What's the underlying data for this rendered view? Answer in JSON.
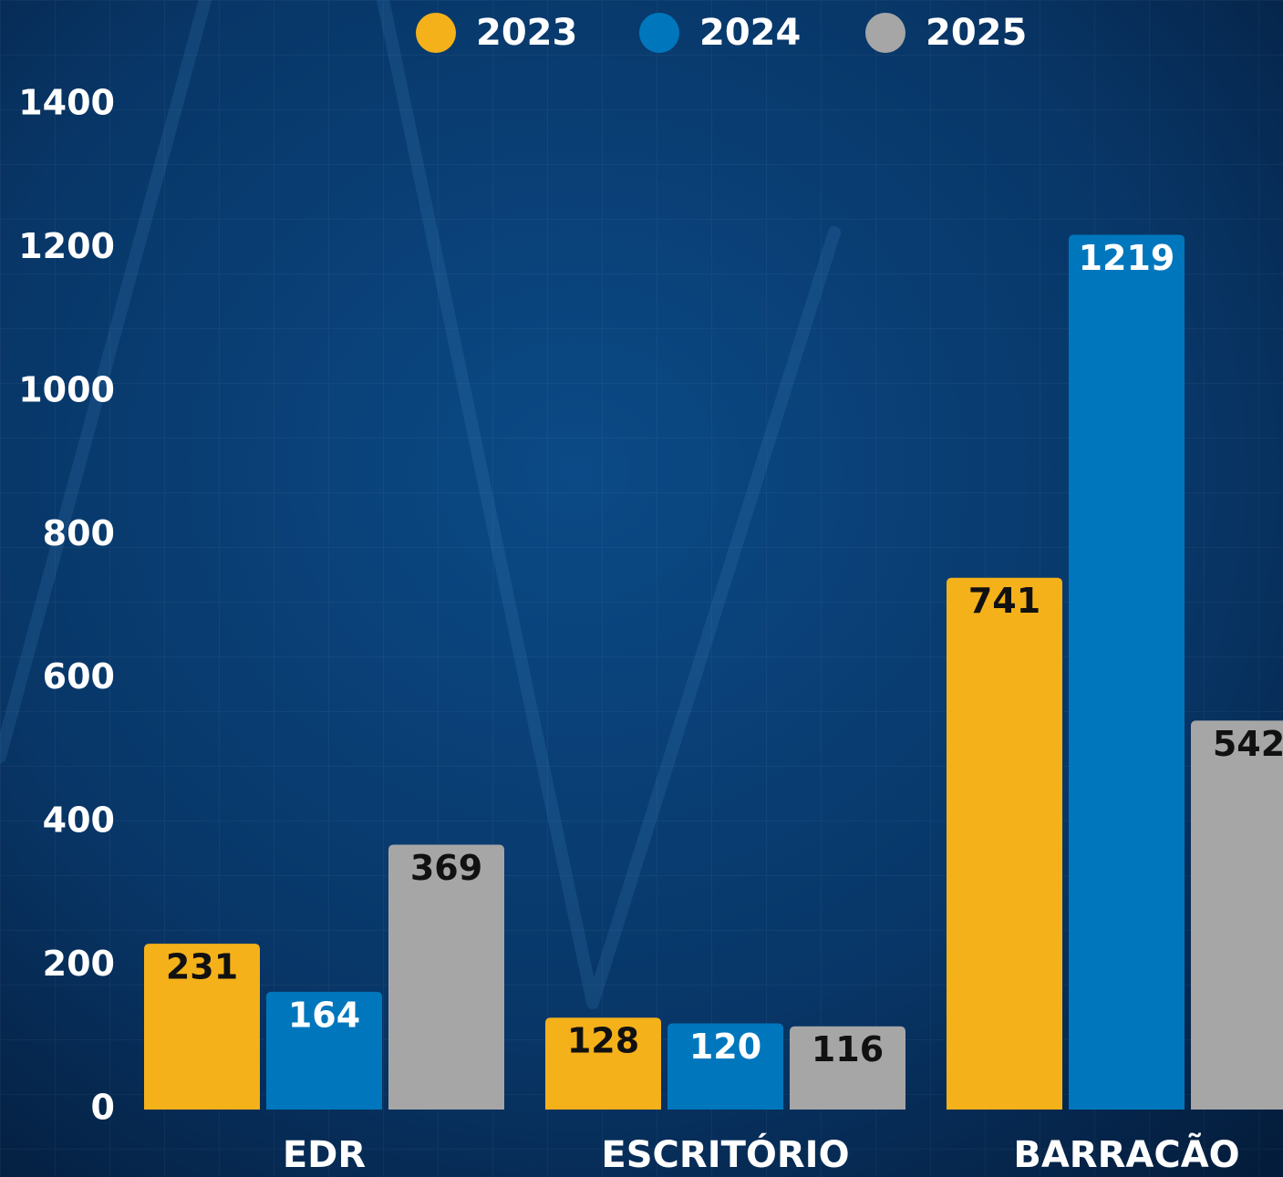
{
  "chart_data": {
    "type": "bar",
    "categories": [
      "EDR",
      "ESCRITÓRIO",
      "BARRACÃO"
    ],
    "series": [
      {
        "name": "2023",
        "color": "#f5b11a",
        "values": [
          231,
          128,
          741
        ]
      },
      {
        "name": "2024",
        "color": "#0077bd",
        "values": [
          164,
          120,
          1219
        ]
      },
      {
        "name": "2025",
        "color": "#a6a6a6",
        "values": [
          369,
          116,
          542
        ]
      }
    ],
    "ylim": [
      0,
      1400
    ],
    "yticks": [
      0,
      200,
      400,
      600,
      800,
      1000,
      1200,
      1400
    ]
  }
}
